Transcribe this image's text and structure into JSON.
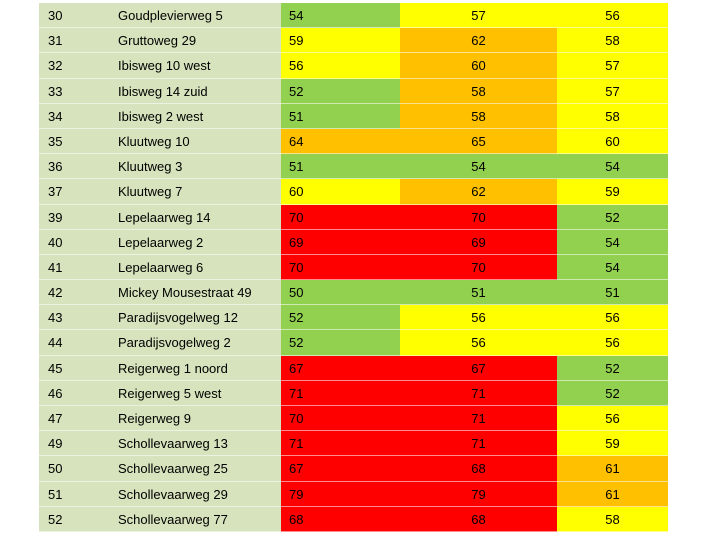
{
  "colors": {
    "green": "#92d050",
    "yellow": "#ffff00",
    "orange": "#ffc000",
    "red": "#ff0000",
    "label_bg": "#d6e3bc"
  },
  "rows": [
    {
      "num": "30",
      "address": "Goudplevierweg 5",
      "v1": "54",
      "c1": "green",
      "v2": "57",
      "c2": "yellow",
      "v3": "56",
      "c3": "yellow"
    },
    {
      "num": "31",
      "address": "Gruttoweg 29",
      "v1": "59",
      "c1": "yellow",
      "v2": "62",
      "c2": "orange",
      "v3": "58",
      "c3": "yellow"
    },
    {
      "num": "32",
      "address": "Ibisweg 10 west",
      "v1": "56",
      "c1": "yellow",
      "v2": "60",
      "c2": "orange",
      "v3": "57",
      "c3": "yellow"
    },
    {
      "num": "33",
      "address": "Ibisweg 14 zuid",
      "v1": "52",
      "c1": "green",
      "v2": "58",
      "c2": "orange",
      "v3": "57",
      "c3": "yellow"
    },
    {
      "num": "34",
      "address": "Ibisweg 2 west",
      "v1": "51",
      "c1": "green",
      "v2": "58",
      "c2": "orange",
      "v3": "58",
      "c3": "yellow"
    },
    {
      "num": "35",
      "address": "Kluutweg 10",
      "v1": "64",
      "c1": "orange",
      "v2": "65",
      "c2": "orange",
      "v3": "60",
      "c3": "yellow"
    },
    {
      "num": "36",
      "address": "Kluutweg 3",
      "v1": "51",
      "c1": "green",
      "v2": "54",
      "c2": "green",
      "v3": "54",
      "c3": "green"
    },
    {
      "num": "37",
      "address": "Kluutweg 7",
      "v1": "60",
      "c1": "yellow",
      "v2": "62",
      "c2": "orange",
      "v3": "59",
      "c3": "yellow"
    },
    {
      "num": "39",
      "address": "Lepelaarweg 14",
      "v1": "70",
      "c1": "red",
      "v2": "70",
      "c2": "red",
      "v3": "52",
      "c3": "green"
    },
    {
      "num": "40",
      "address": "Lepelaarweg 2",
      "v1": "69",
      "c1": "red",
      "v2": "69",
      "c2": "red",
      "v3": "54",
      "c3": "green"
    },
    {
      "num": "41",
      "address": "Lepelaarweg 6",
      "v1": "70",
      "c1": "red",
      "v2": "70",
      "c2": "red",
      "v3": "54",
      "c3": "green"
    },
    {
      "num": "42",
      "address": "Mickey Mousestraat 49",
      "v1": "50",
      "c1": "green",
      "v2": "51",
      "c2": "green",
      "v3": "51",
      "c3": "green"
    },
    {
      "num": "43",
      "address": "Paradijsvogelweg 12",
      "v1": "52",
      "c1": "green",
      "v2": "56",
      "c2": "yellow",
      "v3": "56",
      "c3": "yellow"
    },
    {
      "num": "44",
      "address": "Paradijsvogelweg 2",
      "v1": "52",
      "c1": "green",
      "v2": "56",
      "c2": "yellow",
      "v3": "56",
      "c3": "yellow"
    },
    {
      "num": "45",
      "address": "Reigerweg 1 noord",
      "v1": "67",
      "c1": "red",
      "v2": "67",
      "c2": "red",
      "v3": "52",
      "c3": "green"
    },
    {
      "num": "46",
      "address": "Reigerweg 5 west",
      "v1": "71",
      "c1": "red",
      "v2": "71",
      "c2": "red",
      "v3": "52",
      "c3": "green"
    },
    {
      "num": "47",
      "address": "Reigerweg 9",
      "v1": "70",
      "c1": "red",
      "v2": "71",
      "c2": "red",
      "v3": "56",
      "c3": "yellow"
    },
    {
      "num": "49",
      "address": "Schollevaarweg 13",
      "v1": "71",
      "c1": "red",
      "v2": "71",
      "c2": "red",
      "v3": "59",
      "c3": "yellow"
    },
    {
      "num": "50",
      "address": "Schollevaarweg 25",
      "v1": "67",
      "c1": "red",
      "v2": "68",
      "c2": "red",
      "v3": "61",
      "c3": "orange"
    },
    {
      "num": "51",
      "address": "Schollevaarweg 29",
      "v1": "79",
      "c1": "red",
      "v2": "79",
      "c2": "red",
      "v3": "61",
      "c3": "orange"
    },
    {
      "num": "52",
      "address": "Schollevaarweg 77",
      "v1": "68",
      "c1": "red",
      "v2": "68",
      "c2": "red",
      "v3": "58",
      "c3": "yellow"
    }
  ]
}
